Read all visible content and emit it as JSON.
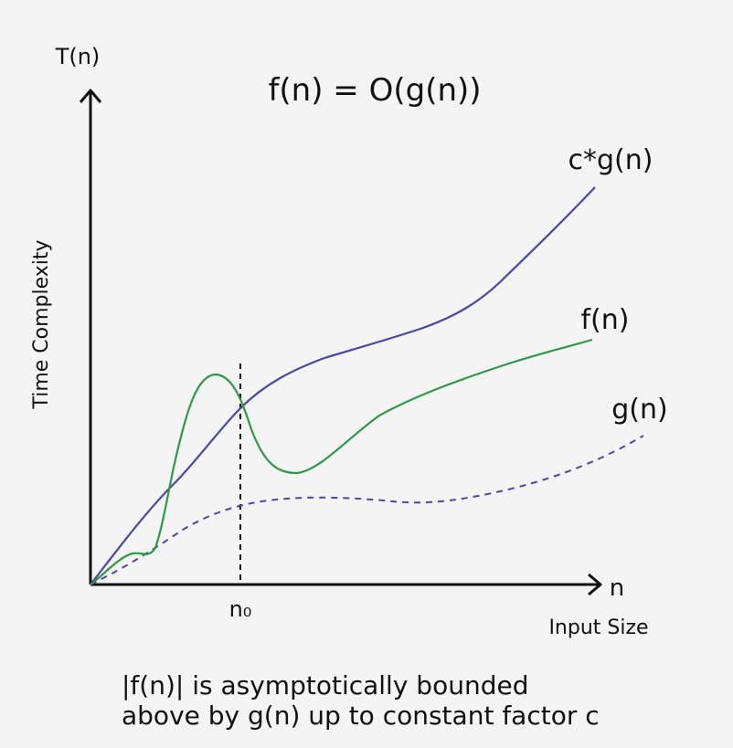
{
  "title": "f(n) = O(g(n))",
  "y_axis": {
    "symbol": "T(n)",
    "label": "Time Complexity"
  },
  "x_axis": {
    "symbol": "n",
    "label": "Input Size"
  },
  "threshold": {
    "label": "n₀"
  },
  "curves": {
    "cg": {
      "label": "c*g(n)",
      "color": "#4b46a8"
    },
    "f": {
      "label": "f(n)",
      "color": "#2e9944"
    },
    "g": {
      "label": "g(n)",
      "color": "#4b46a8",
      "style": "dashed"
    }
  },
  "caption": {
    "line1": "|f(n)| is asymptotically bounded",
    "line2": "above by g(n) up to constant factor c"
  }
}
